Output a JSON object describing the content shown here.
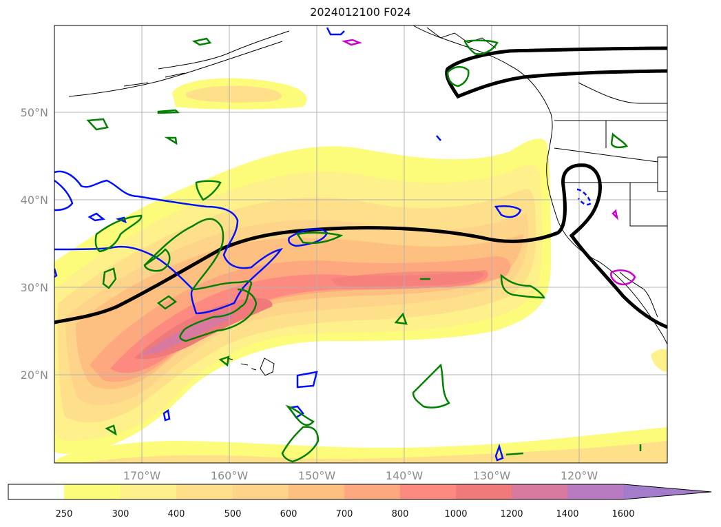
{
  "title": "2024012100 F024",
  "map": {
    "lat_labels": [
      "50°N",
      "40°N",
      "30°N",
      "20°N"
    ],
    "lon_labels": [
      "170°W",
      "160°W",
      "150°W",
      "140°W",
      "130°W",
      "120°W"
    ],
    "gridlines": true
  },
  "colorbar": {
    "ticks": [
      "250",
      "300",
      "400",
      "500",
      "600",
      "700",
      "800",
      "1000",
      "1200",
      "1400",
      "1600"
    ],
    "colors": [
      "#ffffff",
      "#fdfb7a",
      "#fef08a",
      "#fee08a",
      "#fed48a",
      "#fec080",
      "#fea880",
      "#fd8a80",
      "#f07a7a",
      "#d87aa0",
      "#b87ac0",
      "#a47ccc"
    ],
    "extend": "max"
  },
  "contours": {
    "thick_black": "#000000",
    "blue": "#0010ff",
    "green": "#008000",
    "magenta": "#cc00cc"
  }
}
